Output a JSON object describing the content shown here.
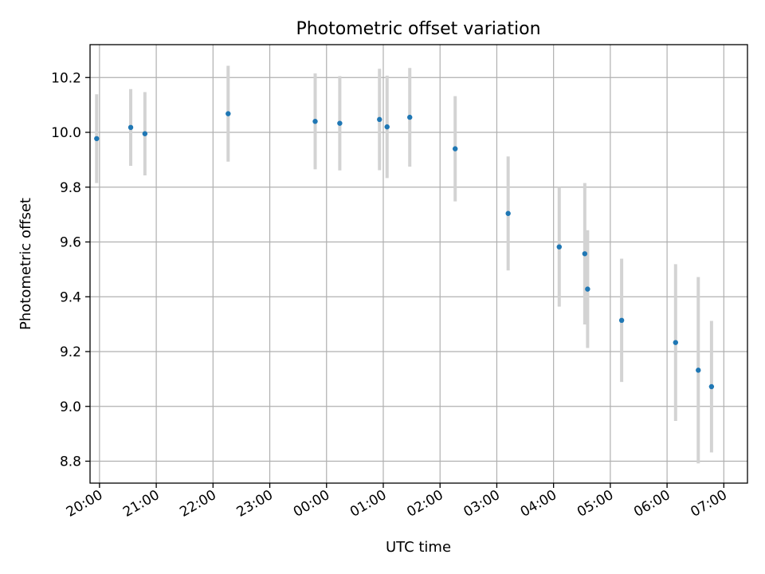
{
  "chart_data": {
    "type": "scatter",
    "title": "Photometric offset variation",
    "xlabel": "UTC time",
    "ylabel": "Photometric offset",
    "x_ticks": [
      "20:00",
      "21:00",
      "22:00",
      "23:00",
      "00:00",
      "01:00",
      "02:00",
      "03:00",
      "04:00",
      "05:00",
      "06:00",
      "07:00"
    ],
    "y_ticks": [
      "8.8",
      "9.0",
      "9.2",
      "9.4",
      "9.6",
      "9.8",
      "10.0",
      "10.2"
    ],
    "xlim": [
      "2019-01-01T19:50",
      "2019-01-02T07:25"
    ],
    "ylim": [
      8.72,
      10.32
    ],
    "grid": true,
    "colors": {
      "point": "#1f77b4",
      "errorbar": "#d3d3d3",
      "grid": "#b0b0b0"
    },
    "points": [
      {
        "time": "2019-01-01T19:57",
        "y": 9.977,
        "yerr": 0.162
      },
      {
        "time": "2019-01-01T20:33",
        "y": 10.018,
        "yerr": 0.14
      },
      {
        "time": "2019-01-01T20:48",
        "y": 9.995,
        "yerr": 0.152
      },
      {
        "time": "2019-01-01T22:16",
        "y": 10.068,
        "yerr": 0.175
      },
      {
        "time": "2019-01-01T23:48",
        "y": 10.04,
        "yerr": 0.175
      },
      {
        "time": "2019-01-02T00:14",
        "y": 10.033,
        "yerr": 0.172
      },
      {
        "time": "2019-01-02T00:56",
        "y": 10.047,
        "yerr": 0.185
      },
      {
        "time": "2019-01-02T01:04",
        "y": 10.02,
        "yerr": 0.187
      },
      {
        "time": "2019-01-02T01:28",
        "y": 10.055,
        "yerr": 0.18
      },
      {
        "time": "2019-01-02T02:16",
        "y": 9.94,
        "yerr": 0.192
      },
      {
        "time": "2019-01-02T03:12",
        "y": 9.704,
        "yerr": 0.208
      },
      {
        "time": "2019-01-02T04:06",
        "y": 9.582,
        "yerr": 0.218
      },
      {
        "time": "2019-01-02T04:33",
        "y": 9.557,
        "yerr": 0.258
      },
      {
        "time": "2019-01-02T04:36",
        "y": 9.428,
        "yerr": 0.215
      },
      {
        "time": "2019-01-02T05:12",
        "y": 9.314,
        "yerr": 0.225
      },
      {
        "time": "2019-01-02T06:09",
        "y": 9.233,
        "yerr": 0.286
      },
      {
        "time": "2019-01-02T06:33",
        "y": 9.132,
        "yerr": 0.34
      },
      {
        "time": "2019-01-02T06:47",
        "y": 9.072,
        "yerr": 0.24
      }
    ]
  }
}
